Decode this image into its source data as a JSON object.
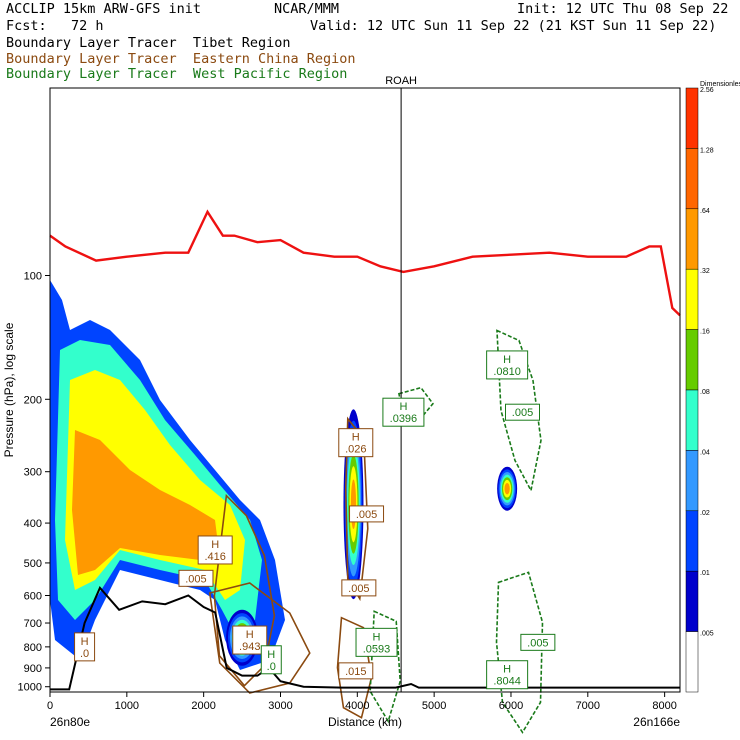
{
  "header": {
    "model": "ACCLIP 15km ARW-GFS init",
    "forecast": "Fcst:   72 h",
    "center": "NCAR/MMM",
    "init": "Init: 12 UTC Thu 08 Sep 22",
    "valid": "Valid: 12 UTC Sun 11 Sep 22 (21 KST Sun 11 Sep 22)"
  },
  "legend": [
    {
      "label": "Boundary Layer Tracer  Tibet Region",
      "color": "#000000"
    },
    {
      "label": "Boundary Layer Tracer  Eastern China Region",
      "color": "#8b4a10"
    },
    {
      "label": "Boundary Layer Tracer  West Pacific Region",
      "color": "#1a7a1a"
    }
  ],
  "chart_data": {
    "type": "cross-section",
    "xlabel": "Distance (km)",
    "ylabel": "Pressure (hPa), log scale",
    "xlim": [
      0,
      8200
    ],
    "ylim": [
      1030,
      35
    ],
    "x_ticks": [
      "0",
      "1000",
      "2000",
      "3000",
      "4000",
      "5000",
      "6000",
      "7000",
      "8000"
    ],
    "y_ticks": [
      "100",
      "200",
      "300",
      "400",
      "500",
      "600",
      "700",
      "800",
      "900",
      "1000"
    ],
    "y_scale": "log",
    "left_endpoint": "26n80e",
    "right_endpoint": "26n166e",
    "station": "ROAH",
    "station_x_km": 4570,
    "colorbar": {
      "title": "Dimensionless",
      "labels": [
        "2.56",
        "1.28",
        ".64",
        ".32",
        ".16",
        ".08",
        ".04",
        ".02",
        ".01",
        ".005"
      ],
      "colors": [
        "#ff3300",
        "#ff6600",
        "#ff9900",
        "#ffff00",
        "#66cc00",
        "#33ffcc",
        "#3399ff",
        "#0044ff",
        "#0000cc",
        "#ffffff"
      ]
    },
    "tropopause_line": {
      "color": "#ee1111",
      "x": [
        0,
        200,
        600,
        1000,
        1500,
        1800,
        2050,
        2250,
        2400,
        2700,
        3000,
        3300,
        3700,
        4000,
        4300,
        4600,
        5000,
        5500,
        6000,
        6500,
        7000,
        7500,
        7800,
        7950,
        8100,
        8200
      ],
      "p": [
        80,
        85,
        92,
        90,
        88,
        88,
        70,
        80,
        80,
        83,
        82,
        88,
        90,
        90,
        95,
        98,
        95,
        90,
        89,
        88,
        90,
        90,
        85,
        85,
        120,
        125
      ]
    },
    "terrain": {
      "x": [
        0,
        250,
        450,
        650,
        900,
        1200,
        1500,
        1800,
        2000,
        2150,
        2300,
        2500,
        2700,
        2850,
        3000,
        3300,
        3800,
        4500,
        4700,
        4800,
        5200,
        6000,
        7000,
        8200
      ],
      "p": [
        1015,
        1015,
        700,
        575,
        650,
        620,
        630,
        600,
        640,
        660,
        900,
        940,
        940,
        900,
        970,
        1000,
        1005,
        1005,
        985,
        1005,
        1005,
        1005,
        1005,
        1005
      ]
    },
    "labels": [
      {
        "text": "H\n.0",
        "x": 450,
        "p": 800,
        "color": "#8b4a10"
      },
      {
        "text": "H\n.416",
        "x": 2150,
        "p": 465,
        "color": "#8b4a10"
      },
      {
        "text": ".005",
        "x": 1900,
        "p": 545,
        "color": "#8b4a10"
      },
      {
        "text": "H\n.943",
        "x": 2600,
        "p": 770,
        "color": "#8b4a10"
      },
      {
        "text": "H\n.0",
        "x": 2880,
        "p": 860,
        "color": "#1a7a1a"
      },
      {
        "text": "H\n.026",
        "x": 3980,
        "p": 255,
        "color": "#8b4a10"
      },
      {
        "text": ".005",
        "x": 4120,
        "p": 380,
        "color": "#8b4a10"
      },
      {
        "text": ".005",
        "x": 4020,
        "p": 575,
        "color": "#8b4a10"
      },
      {
        "text": "H\n.0593",
        "x": 4250,
        "p": 780,
        "color": "#1a7a1a"
      },
      {
        "text": ".015",
        "x": 3980,
        "p": 915,
        "color": "#8b4a10"
      },
      {
        "text": "H\n.0396",
        "x": 4600,
        "p": 215,
        "color": "#1a7a1a"
      },
      {
        "text": "H\n.0810",
        "x": 5950,
        "p": 165,
        "color": "#1a7a1a"
      },
      {
        "text": ".005",
        "x": 6150,
        "p": 215,
        "color": "#1a7a1a"
      },
      {
        "text": ".005",
        "x": 6350,
        "p": 780,
        "color": "#1a7a1a"
      },
      {
        "text": "H\n.8044",
        "x": 5950,
        "p": 935,
        "color": "#1a7a1a"
      }
    ]
  }
}
